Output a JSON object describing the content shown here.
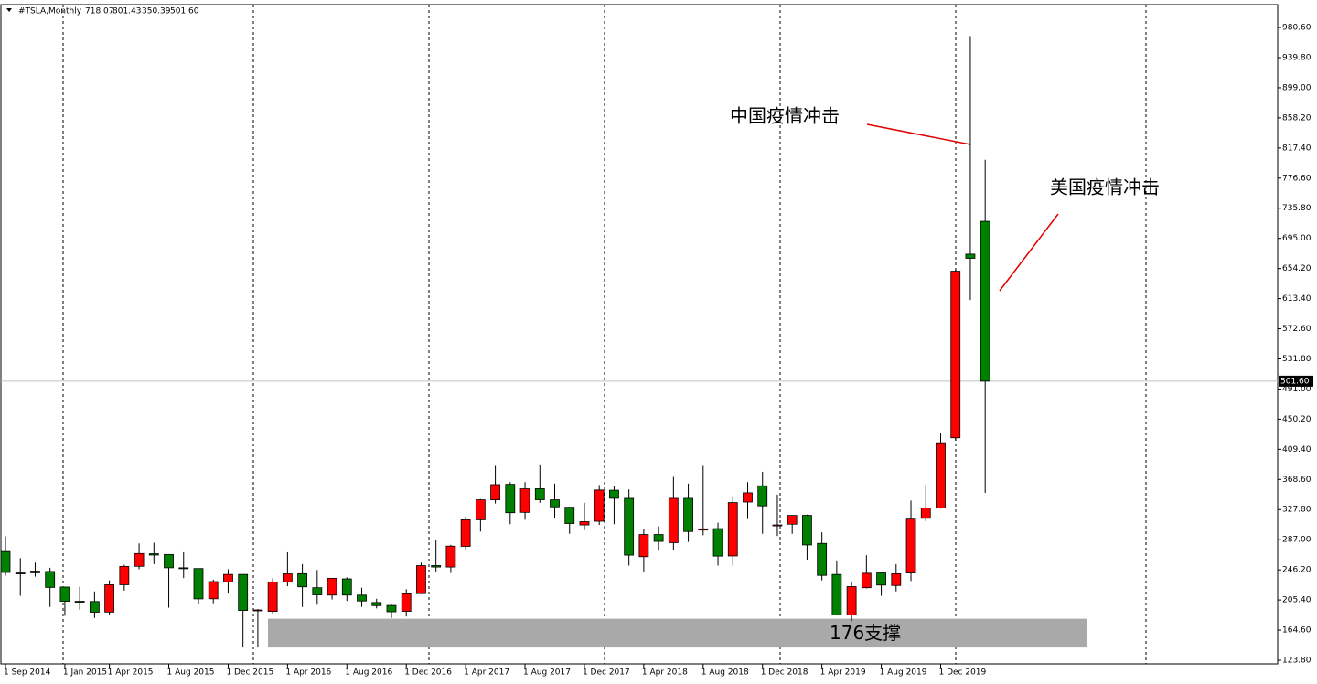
{
  "chart_data": {
    "type": "candlestick",
    "title": "#TSLA,Monthly",
    "header_values": [
      "718.07",
      "801.43",
      "350.39",
      "501.60"
    ],
    "categories": [
      "1 Sep 2014",
      null,
      null,
      null,
      "1 Jan 2015",
      null,
      null,
      "1 Apr 2015",
      null,
      null,
      null,
      "1 Aug 2015",
      null,
      null,
      null,
      "1 Dec 2015",
      null,
      null,
      null,
      "1 Apr 2016",
      null,
      null,
      null,
      "1 Aug 2016",
      null,
      null,
      null,
      "1 Dec 2016",
      null,
      null,
      null,
      "1 Apr 2017",
      null,
      null,
      null,
      "1 Aug 2017",
      null,
      null,
      null,
      "1 Dec 2017",
      null,
      null,
      null,
      "1 Apr 2018",
      null,
      null,
      null,
      "1 Aug 2018",
      null,
      null,
      null,
      "1 Dec 2018",
      null,
      null,
      null,
      "1 Apr 2019",
      null,
      null,
      null,
      "1 Aug 2019",
      null,
      null,
      null,
      "1 Dec 2019",
      null,
      null,
      null
    ],
    "open": [
      271,
      242,
      242.2,
      244,
      222.9,
      203.6,
      203.3,
      189,
      226,
      251,
      268,
      267,
      249,
      248,
      207,
      230,
      240,
      191,
      190,
      230,
      241,
      222,
      212,
      234,
      212,
      202,
      198,
      190,
      214,
      252,
      250,
      278,
      314,
      341,
      362,
      324,
      356,
      341,
      331,
      307,
      312,
      354,
      343,
      264,
      294,
      283,
      343,
      300,
      302,
      265,
      338,
      360,
      306,
      308,
      320,
      282,
      240,
      185,
      222,
      242,
      225,
      242,
      316,
      330,
      425,
      673.7,
      718.07
    ],
    "high": [
      291.4,
      262,
      256,
      249,
      223.2,
      223.3,
      217,
      232,
      253,
      282,
      283,
      266,
      270,
      248,
      233,
      247,
      240,
      193,
      235,
      270,
      254,
      246,
      235,
      236,
      222,
      207,
      200,
      220,
      256,
      287,
      280,
      318,
      342,
      387,
      365,
      365,
      389,
      363,
      327,
      337,
      361,
      359,
      355,
      301,
      305,
      372,
      363,
      387,
      310,
      346,
      365,
      379,
      348,
      320,
      321,
      297,
      259,
      229,
      266,
      243,
      254,
      340,
      361,
      432,
      653,
      969,
      801.43
    ],
    "low": [
      238.4,
      211,
      237,
      196,
      184,
      192,
      181,
      185,
      218,
      247,
      254,
      195,
      235,
      200,
      201,
      214,
      141,
      141,
      187,
      224,
      196,
      199,
      206,
      204,
      196,
      194,
      181,
      183,
      214,
      244,
      242,
      274,
      298,
      336,
      308,
      314,
      337,
      316,
      295,
      300,
      307,
      308,
      252,
      244,
      272,
      273,
      284,
      293,
      252,
      252,
      315,
      295,
      292,
      295,
      260,
      232,
      185,
      176.9,
      221,
      211,
      217,
      231,
      312,
      329,
      421,
      611.5,
      350.39
    ],
    "close": [
      242.7,
      241.7,
      244.5,
      222.4,
      203.6,
      203.3,
      188.8,
      226,
      250.8,
      268.3,
      266.2,
      249,
      248,
      206.9,
      230.3,
      240,
      191.2,
      191.9,
      229.8,
      240.8,
      223.2,
      212.3,
      234.8,
      212,
      204,
      197.7,
      189.4,
      213.7,
      251.9,
      250,
      278.3,
      314,
      341,
      361.6,
      323.5,
      355.9,
      341.1,
      331.5,
      308.9,
      311.4,
      354.3,
      343.1,
      266.1,
      294,
      284.7,
      343,
      298.1,
      301.7,
      264.8,
      337.3,
      350.5,
      332.8,
      307,
      319.9,
      279.9,
      238.7,
      185.2,
      223.5,
      241.6,
      225.6,
      240.9,
      314.9,
      329.9,
      418.3,
      650.6,
      668,
      501.6
    ],
    "up_color": "#ff0000",
    "down_color": "#008000",
    "ylim": [
      118.85,
      1011.6
    ],
    "yticks": [
      {
        "value": 123.8,
        "label": "123.80"
      },
      {
        "value": 164.6,
        "label": "164.60"
      },
      {
        "value": 205.4,
        "label": "205.40"
      },
      {
        "value": 246.2,
        "label": "246.20"
      },
      {
        "value": 287,
        "label": "287.00"
      },
      {
        "value": 327.8,
        "label": "327.80"
      },
      {
        "value": 368.6,
        "label": "368.60"
      },
      {
        "value": 409.4,
        "label": "409.40"
      },
      {
        "value": 450.2,
        "label": "450.20"
      },
      {
        "value": 491,
        "label": "491.00"
      },
      {
        "value": 531.8,
        "label": "531.80"
      },
      {
        "value": 572.6,
        "label": "572.60"
      },
      {
        "value": 613.4,
        "label": "613.40"
      },
      {
        "value": 654.2,
        "label": "654.20"
      },
      {
        "value": 695,
        "label": "695.00"
      },
      {
        "value": 735.8,
        "label": "735.80"
      },
      {
        "value": 776.6,
        "label": "776.60"
      },
      {
        "value": 817.4,
        "label": "817.40"
      },
      {
        "value": 858.2,
        "label": "858.20"
      },
      {
        "value": 899,
        "label": "899.00"
      },
      {
        "value": 939.8,
        "label": "939.80"
      },
      {
        "value": 980.6,
        "label": "980.60"
      }
    ],
    "current_price": {
      "value": 501.6,
      "label": "501.60"
    },
    "support": {
      "label": "176支撑",
      "range": [
        141,
        180
      ]
    },
    "annotations": [
      "中国疫情冲击",
      "美国疫情冲击"
    ]
  }
}
